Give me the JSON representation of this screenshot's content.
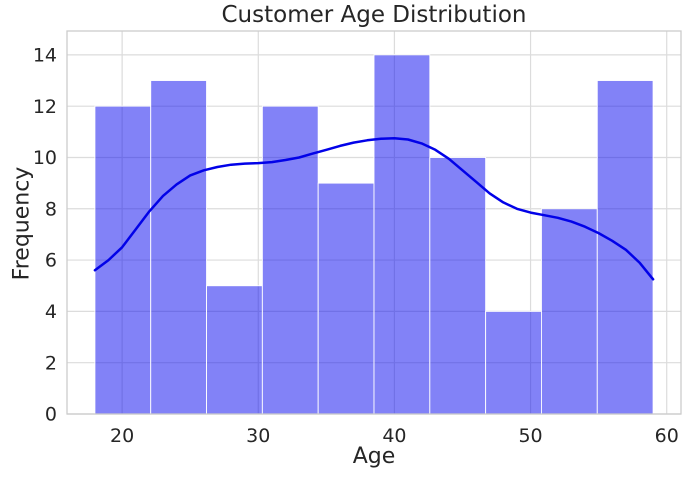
{
  "chart_data": {
    "type": "bar",
    "subtype": "histogram_with_kde",
    "title": "Customer Age Distribution",
    "xlabel": "Age",
    "ylabel": "Frequency",
    "bin_edges": [
      18.0,
      22.1,
      26.2,
      30.3,
      34.4,
      38.5,
      42.6,
      46.7,
      50.8,
      54.9,
      59.0
    ],
    "frequencies": [
      12,
      13,
      5,
      12,
      9,
      14,
      10,
      4,
      8,
      13
    ],
    "kde_curve": {
      "x": [
        18,
        19,
        20,
        21,
        22,
        23,
        24,
        25,
        26,
        27,
        28,
        29,
        30,
        31,
        32,
        33,
        34,
        35,
        36,
        37,
        38,
        39,
        40,
        41,
        42,
        43,
        44,
        45,
        46,
        47,
        48,
        49,
        50,
        51,
        52,
        53,
        54,
        55,
        56,
        57,
        58,
        59
      ],
      "y": [
        5.6,
        6.0,
        6.5,
        7.2,
        7.9,
        8.5,
        8.95,
        9.3,
        9.5,
        9.63,
        9.72,
        9.76,
        9.78,
        9.82,
        9.9,
        10.0,
        10.15,
        10.3,
        10.45,
        10.58,
        10.67,
        10.73,
        10.75,
        10.7,
        10.55,
        10.3,
        9.95,
        9.5,
        9.05,
        8.6,
        8.25,
        8.0,
        7.85,
        7.75,
        7.65,
        7.5,
        7.3,
        7.05,
        6.75,
        6.4,
        5.9,
        5.25
      ]
    },
    "x_ticks": [
      20,
      30,
      40,
      50,
      60
    ],
    "y_ticks": [
      0,
      2,
      4,
      6,
      8,
      10,
      12,
      14
    ],
    "xlim": [
      15.95,
      61.05
    ],
    "ylim": [
      0,
      14.93
    ],
    "grid": true,
    "legend": "none",
    "colors": {
      "bar_fill": "rgba(15, 15, 240, 0.52)",
      "bar_edge": "#ffffff",
      "kde_line": "#0202e8",
      "grid_line": "#dcdcdc",
      "spine": "#cccccc",
      "text": "#262626",
      "background": "#ffffff"
    }
  }
}
